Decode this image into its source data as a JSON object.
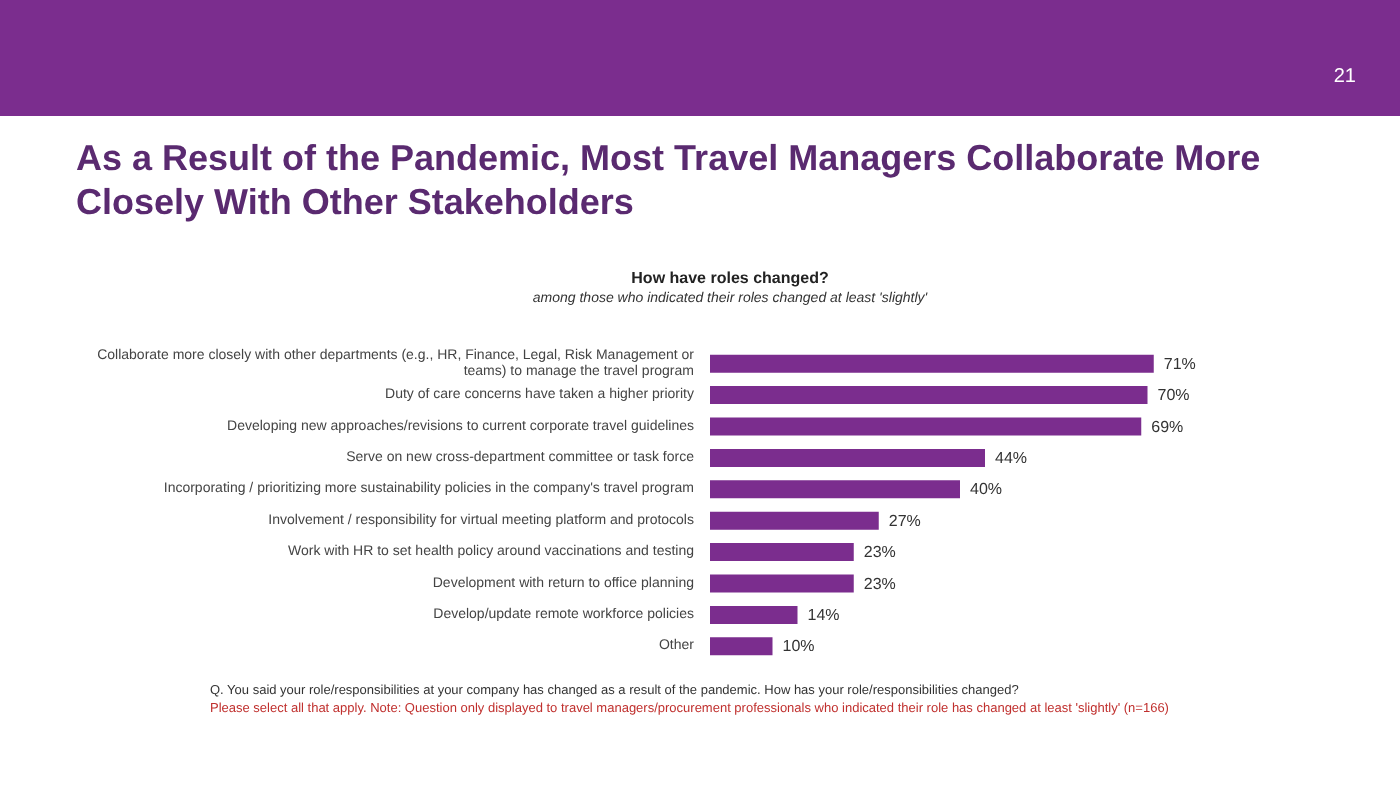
{
  "chart_data": {
    "type": "bar",
    "orientation": "horizontal",
    "title": "How have roles changed?",
    "subtitle": "among those who indicated their roles changed at least 'slightly'",
    "categories": [
      "Collaborate more closely with other departments (e.g., HR, Finance, Legal, Risk Management or teams) to manage the travel program",
      "Duty of care concerns have taken a higher priority",
      "Developing new approaches/revisions to current corporate travel guidelines",
      "Serve on new cross-department committee or task force",
      "Incorporating / prioritizing more sustainability policies in the company's travel program",
      "Involvement / responsibility for virtual meeting platform and protocols",
      "Work with HR to set health policy around vaccinations and testing",
      "Development with return to office planning",
      "Develop/update remote workforce policies",
      "Other"
    ],
    "values": [
      71,
      70,
      69,
      44,
      40,
      27,
      23,
      23,
      14,
      10
    ],
    "value_labels": [
      "71%",
      "70%",
      "69%",
      "44%",
      "40%",
      "27%",
      "23%",
      "23%",
      "14%",
      "10%"
    ],
    "color": "#7b2d8e",
    "annotations": [
      "21",
      "As a Result of the Pandemic, Most Travel Managers Collaborate More Closely With Other Stakeholders",
      "Q. You said your role/responsibilities at your company has changed as a result of the pandemic. How has your role/responsibilities changed?",
      "Please select all that apply. Note: Question only displayed to travel managers/procurement professionals who indicated their role has changed at least 'slightly' (n=166)"
    ]
  }
}
